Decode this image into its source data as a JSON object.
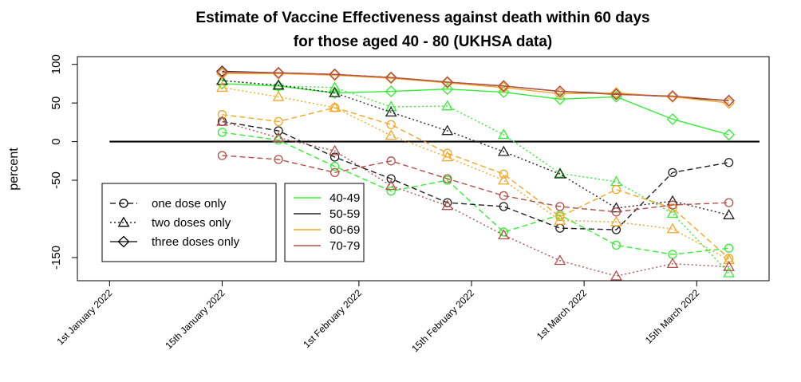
{
  "chart_data": {
    "type": "line",
    "title_line1": "Estimate of Vaccine Effectiveness against death within 60 days",
    "title_line2": "for those aged 40 - 80 (UKHSA data)",
    "ylabel": "percent",
    "xlabel": "",
    "x_range_days": [
      -4,
      82
    ],
    "ylim": [
      -180,
      110
    ],
    "y_ticks": [
      100,
      50,
      0,
      -50,
      -150
    ],
    "y_tick_labels": [
      "100",
      "50",
      "0",
      "-50",
      "-150"
    ],
    "x_ticks": [
      {
        "day": 0,
        "label": "1st January 2022"
      },
      {
        "day": 14,
        "label": "15th January 2022"
      },
      {
        "day": 31,
        "label": "1st February 2022"
      },
      {
        "day": 45,
        "label": "15th February 2022"
      },
      {
        "day": 59,
        "label": "1st March 2022"
      },
      {
        "day": 73,
        "label": "15th March 2022"
      }
    ],
    "reference_line_y": 0,
    "x_days": [
      14,
      21,
      28,
      35,
      42,
      49,
      56,
      63,
      70,
      77
    ],
    "dose_legend": [
      {
        "label": "one dose only",
        "marker": "circle",
        "line": "dashed"
      },
      {
        "label": "two doses only",
        "marker": "triangle",
        "line": "dotted"
      },
      {
        "label": "three doses only",
        "marker": "diamond",
        "line": "solid"
      }
    ],
    "age_legend": [
      {
        "label": "40-49",
        "color": "#33ee33"
      },
      {
        "label": "50-59",
        "color": "#222222"
      },
      {
        "label": "60-69",
        "color": "#f5a623"
      },
      {
        "label": "70-79",
        "color": "#b5504a"
      }
    ],
    "series": [
      {
        "name": "40-49 one dose only",
        "age": "40-49",
        "dose": "one dose only",
        "values": [
          12,
          2,
          -32,
          -64,
          -50,
          -117,
          -95,
          -134,
          -146,
          -138
        ]
      },
      {
        "name": "40-49 two doses only",
        "age": "40-49",
        "dose": "two doses only",
        "values": [
          79,
          72,
          70,
          45,
          46,
          9,
          -41,
          -52,
          -93,
          -170
        ]
      },
      {
        "name": "40-49 three doses only",
        "age": "40-49",
        "dose": "three doses only",
        "values": [
          75,
          72,
          63,
          65,
          68,
          64,
          55,
          58,
          29,
          9
        ]
      },
      {
        "name": "50-59 one dose only",
        "age": "50-59",
        "dose": "one dose only",
        "values": [
          26,
          14,
          -20,
          -48,
          -79,
          -84,
          -112,
          -114,
          -40,
          -27
        ]
      },
      {
        "name": "50-59 two doses only",
        "age": "50-59",
        "dose": "two doses only",
        "values": [
          79,
          73,
          63,
          38,
          14,
          -13,
          -42,
          -86,
          -77,
          -95
        ]
      },
      {
        "name": "50-59 three doses only",
        "age": "50-59",
        "dose": "three doses only",
        "values": [
          91,
          89,
          87,
          83,
          77,
          72,
          65,
          62,
          58,
          53
        ]
      },
      {
        "name": "60-69 one dose only",
        "age": "60-69",
        "dose": "one dose only",
        "values": [
          35,
          26,
          44,
          22,
          -15,
          -42,
          -97,
          -62,
          -86,
          -151
        ]
      },
      {
        "name": "60-69 two doses only",
        "age": "60-69",
        "dose": "two doses only",
        "values": [
          70,
          58,
          44,
          8,
          -20,
          -50,
          -102,
          -104,
          -113,
          -153
        ]
      },
      {
        "name": "60-69 three doses only",
        "age": "60-69",
        "dose": "three doses only",
        "values": [
          88,
          88,
          86,
          82,
          76,
          70,
          62,
          63,
          58,
          50
        ]
      },
      {
        "name": "70-79 one dose only",
        "age": "70-79",
        "dose": "one dose only",
        "values": [
          -18,
          -23,
          -40,
          -25,
          -48,
          -70,
          -84,
          -91,
          -82,
          -79
        ]
      },
      {
        "name": "70-79 two doses only",
        "age": "70-79",
        "dose": "two doses only",
        "values": [
          26,
          5,
          -12,
          -57,
          -83,
          -121,
          -154,
          -174,
          -158,
          -162
        ]
      },
      {
        "name": "70-79 three doses only",
        "age": "70-79",
        "dose": "three doses only",
        "values": [
          90,
          89,
          87,
          83,
          77,
          72,
          65,
          61,
          59,
          53
        ]
      }
    ]
  }
}
